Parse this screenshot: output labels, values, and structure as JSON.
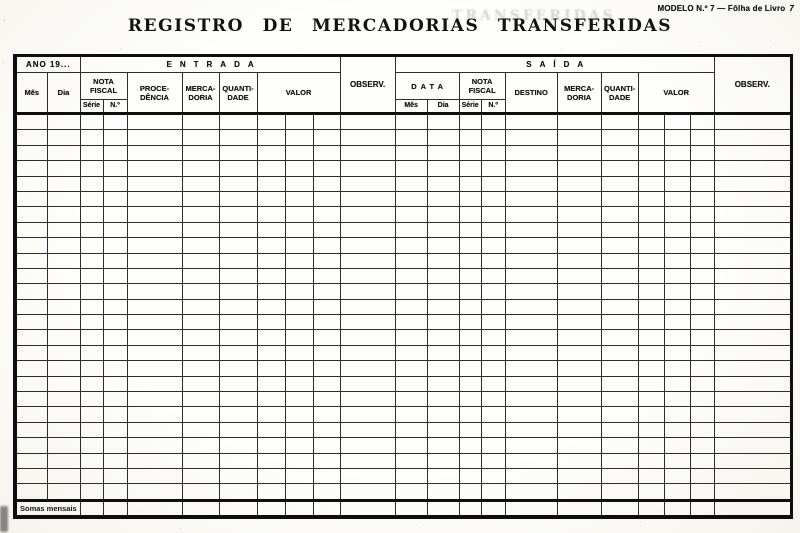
{
  "page": {
    "model_note": "MODELO N.º 7 — Fôlha de Livro",
    "page_mark": "7",
    "title": "REGISTRO DE MERCADORIAS TRANSFERIDAS",
    "ghost_text": "TRANSFERIDAS"
  },
  "table": {
    "year_label": "ANO 19...",
    "observ_label": "OBSERV.",
    "somas_label": "Somas mensais",
    "body_rows": 25,
    "entrada": {
      "label": "ENTRADA",
      "columns": {
        "mes": "Mês",
        "dia": "Dia",
        "nota_fiscal": "NOTA\nFISCAL",
        "serie": "Série",
        "numero": "N.º",
        "procedencia": "PROCE-\nDÊNCIA",
        "mercadoria": "MERCA-\nDORIA",
        "quantidade": "QUANTI-\nDADE",
        "valor": "VALOR"
      }
    },
    "saida": {
      "label": "SAÍDA",
      "columns": {
        "data": "DATA",
        "mes": "Mês",
        "dia": "Dia",
        "nota_fiscal": "NOTA\nFISCAL",
        "serie": "Série",
        "numero": "N.º",
        "destino": "DESTINO",
        "mercadoria": "MERCA-\nDORIA",
        "quantidade": "QUANTI-\nDADE",
        "valor": "VALOR"
      }
    }
  },
  "colors": {
    "ink": "#1a1a1a",
    "line": "#2d2d2d",
    "paper": "#fcfbf7"
  }
}
